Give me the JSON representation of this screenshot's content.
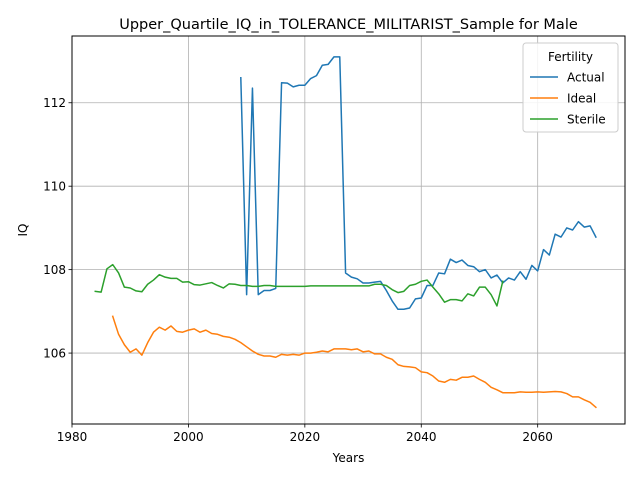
{
  "chart_data": {
    "type": "line",
    "title": "Upper_Quartile_IQ_in_TOLERANCE_MILITARIST_Sample for Male",
    "xlabel": "Years",
    "ylabel": "IQ",
    "xlim": [
      1980,
      2075
    ],
    "ylim": [
      104.3,
      113.6
    ],
    "xticks": [
      1980,
      2000,
      2020,
      2040,
      2060
    ],
    "yticks": [
      106,
      108,
      110,
      112
    ],
    "grid": true,
    "legend": {
      "title": "Fertility",
      "placement": "top-right"
    },
    "series": [
      {
        "name": "Actual",
        "color": "#1f77b4",
        "x": [
          2009,
          2010,
          2011,
          2012,
          2013,
          2014,
          2015,
          2016,
          2017,
          2018,
          2019,
          2020,
          2021,
          2022,
          2023,
          2024,
          2025,
          2026,
          2027,
          2028,
          2029,
          2030,
          2031,
          2032,
          2033,
          2034,
          2035,
          2036,
          2037,
          2038,
          2039,
          2040,
          2041,
          2042,
          2043,
          2044,
          2045,
          2046,
          2047,
          2048,
          2049,
          2050,
          2051,
          2052,
          2053,
          2054,
          2055,
          2056,
          2057,
          2058,
          2059,
          2060,
          2061,
          2062,
          2063,
          2064,
          2065,
          2066,
          2067,
          2068,
          2069,
          2070
        ],
        "y": [
          112.6,
          107.4,
          112.35,
          107.4,
          107.5,
          107.5,
          107.55,
          112.48,
          112.47,
          112.38,
          112.42,
          112.42,
          112.58,
          112.65,
          112.9,
          112.92,
          113.1,
          113.1,
          107.92,
          107.82,
          107.78,
          107.68,
          107.68,
          107.7,
          107.72,
          107.5,
          107.25,
          107.05,
          107.05,
          107.08,
          107.3,
          107.32,
          107.62,
          107.62,
          107.92,
          107.9,
          108.25,
          108.17,
          108.23,
          108.1,
          108.07,
          107.95,
          108.0,
          107.8,
          107.87,
          107.68,
          107.8,
          107.75,
          107.95,
          107.77,
          108.1,
          107.97,
          108.48,
          108.35,
          108.85,
          108.78,
          109.0,
          108.95,
          109.15,
          109.02,
          109.05,
          108.78
        ]
      },
      {
        "name": "Ideal",
        "color": "#ff7f0e",
        "x": [
          1987,
          1988,
          1989,
          1990,
          1991,
          1992,
          1993,
          1994,
          1995,
          1996,
          1997,
          1998,
          1999,
          2000,
          2001,
          2002,
          2003,
          2004,
          2005,
          2006,
          2007,
          2008,
          2009,
          2010,
          2011,
          2012,
          2013,
          2014,
          2015,
          2016,
          2017,
          2018,
          2019,
          2020,
          2021,
          2022,
          2023,
          2024,
          2025,
          2026,
          2027,
          2028,
          2029,
          2030,
          2031,
          2032,
          2033,
          2034,
          2035,
          2036,
          2037,
          2038,
          2039,
          2040,
          2041,
          2042,
          2043,
          2044,
          2045,
          2046,
          2047,
          2048,
          2049,
          2050,
          2051,
          2052,
          2053,
          2054,
          2055,
          2056,
          2057,
          2058,
          2059,
          2060,
          2061,
          2062,
          2063,
          2064,
          2065,
          2066,
          2067,
          2068,
          2069,
          2070
        ],
        "y": [
          106.88,
          106.45,
          106.2,
          106.02,
          106.1,
          105.95,
          106.25,
          106.5,
          106.62,
          106.55,
          106.65,
          106.52,
          106.5,
          106.55,
          106.58,
          106.5,
          106.55,
          106.47,
          106.45,
          106.4,
          106.38,
          106.33,
          106.25,
          106.15,
          106.05,
          105.97,
          105.93,
          105.93,
          105.9,
          105.97,
          105.95,
          105.97,
          105.95,
          106.0,
          106.0,
          106.02,
          106.05,
          106.03,
          106.1,
          106.1,
          106.1,
          106.08,
          106.1,
          106.03,
          106.05,
          105.98,
          105.98,
          105.9,
          105.85,
          105.72,
          105.68,
          105.67,
          105.65,
          105.55,
          105.53,
          105.45,
          105.33,
          105.3,
          105.37,
          105.35,
          105.42,
          105.42,
          105.45,
          105.37,
          105.3,
          105.18,
          105.12,
          105.05,
          105.05,
          105.05,
          105.07,
          105.06,
          105.06,
          105.07,
          105.06,
          105.07,
          105.08,
          105.07,
          105.03,
          104.95,
          104.95,
          104.88,
          104.82,
          104.7
        ]
      },
      {
        "name": "Sterile",
        "color": "#2ca02c",
        "x": [
          1984,
          1985,
          1986,
          1987,
          1988,
          1989,
          1990,
          1991,
          1992,
          1993,
          1994,
          1995,
          1996,
          1997,
          1998,
          1999,
          2000,
          2001,
          2002,
          2003,
          2004,
          2005,
          2006,
          2007,
          2008,
          2009,
          2010,
          2011,
          2012,
          2013,
          2014,
          2015,
          2016,
          2017,
          2018,
          2019,
          2020,
          2021,
          2022,
          2023,
          2024,
          2025,
          2026,
          2027,
          2028,
          2029,
          2030,
          2031,
          2032,
          2033,
          2034,
          2035,
          2036,
          2037,
          2038,
          2039,
          2040,
          2041,
          2042,
          2043,
          2044,
          2045,
          2046,
          2047,
          2048,
          2049,
          2050,
          2051,
          2052,
          2053,
          2054
        ],
        "y": [
          107.48,
          107.46,
          108.02,
          108.12,
          107.92,
          107.58,
          107.56,
          107.49,
          107.47,
          107.65,
          107.75,
          107.88,
          107.82,
          107.79,
          107.79,
          107.7,
          107.71,
          107.64,
          107.63,
          107.66,
          107.69,
          107.62,
          107.56,
          107.66,
          107.65,
          107.62,
          107.62,
          107.6,
          107.6,
          107.62,
          107.62,
          107.6,
          107.6,
          107.6,
          107.6,
          107.6,
          107.6,
          107.61,
          107.61,
          107.61,
          107.61,
          107.61,
          107.61,
          107.61,
          107.61,
          107.61,
          107.61,
          107.61,
          107.65,
          107.65,
          107.62,
          107.52,
          107.45,
          107.48,
          107.62,
          107.65,
          107.72,
          107.75,
          107.58,
          107.42,
          107.22,
          107.28,
          107.28,
          107.25,
          107.42,
          107.37,
          107.58,
          107.58,
          107.4,
          107.13,
          107.72
        ]
      }
    ]
  }
}
